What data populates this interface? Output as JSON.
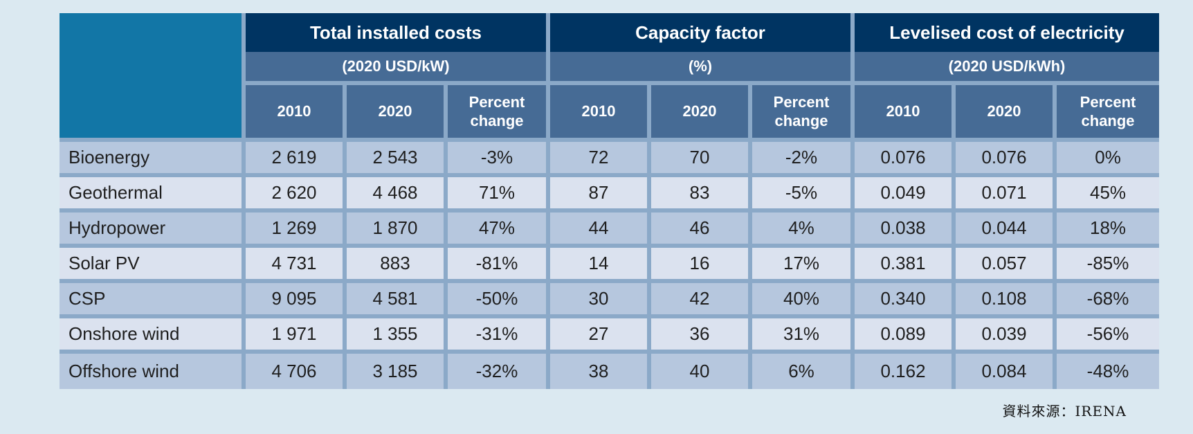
{
  "table": {
    "groups": [
      {
        "title": "Total installed costs",
        "unit": "(2020 USD/kW)"
      },
      {
        "title": "Capacity factor",
        "unit": "(%)"
      },
      {
        "title": "Levelised cost of electricity",
        "unit": "(2020 USD/kWh)"
      }
    ],
    "subheaders": [
      "2010",
      "2020",
      "Percent change"
    ],
    "rows": [
      {
        "label": "Bioenergy",
        "values": [
          "2 619",
          "2 543",
          "-3%",
          "72",
          "70",
          "-2%",
          "0.076",
          "0.076",
          "0%"
        ]
      },
      {
        "label": "Geothermal",
        "values": [
          "2 620",
          "4 468",
          "71%",
          "87",
          "83",
          "-5%",
          "0.049",
          "0.071",
          "45%"
        ]
      },
      {
        "label": "Hydropower",
        "values": [
          "1 269",
          "1 870",
          "47%",
          "44",
          "46",
          "4%",
          "0.038",
          "0.044",
          "18%"
        ]
      },
      {
        "label": "Solar PV",
        "values": [
          "4 731",
          "883",
          "-81%",
          "14",
          "16",
          "17%",
          "0.381",
          "0.057",
          "-85%"
        ]
      },
      {
        "label": "CSP",
        "values": [
          "9 095",
          "4 581",
          "-50%",
          "30",
          "42",
          "40%",
          "0.340",
          "0.108",
          "-68%"
        ]
      },
      {
        "label": "Onshore wind",
        "values": [
          "1 971",
          "1 355",
          "-31%",
          "27",
          "36",
          "31%",
          "0.089",
          "0.039",
          "-56%"
        ]
      },
      {
        "label": "Offshore wind",
        "values": [
          "4 706",
          "3 185",
          "-32%",
          "38",
          "40",
          "6%",
          "0.162",
          "0.084",
          "-48%"
        ]
      }
    ]
  },
  "source": "資料來源：IRENA",
  "colors": {
    "background": "#dbe9f1",
    "corner": "#1276a6",
    "group_title": "#003462",
    "header": "#466b95",
    "grid": "#8ba9c8",
    "row_dark": "#b6c7de",
    "row_light": "#dbe2ef"
  }
}
